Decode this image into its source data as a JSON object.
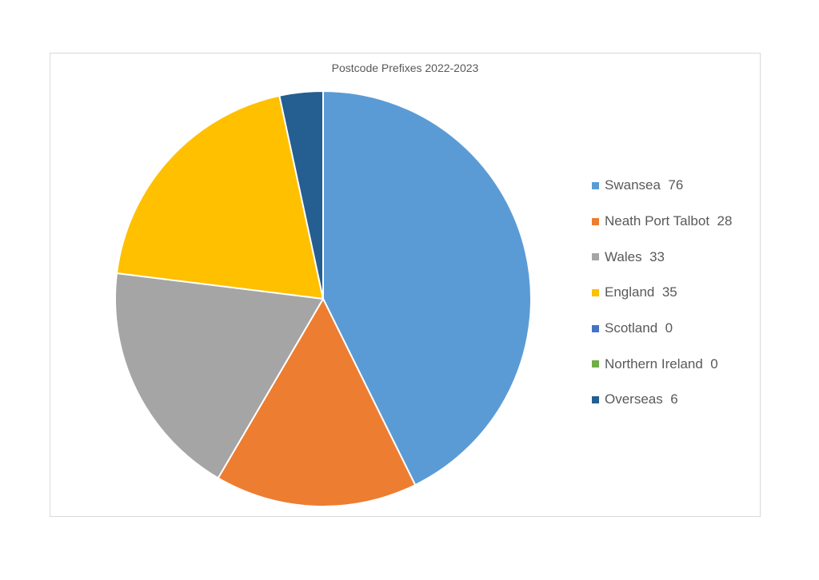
{
  "chart_data": {
    "type": "pie",
    "title": "Postcode Prefixes 2022-2023",
    "legend_position": "right",
    "slices": [
      {
        "label": "Swansea",
        "value": 76,
        "color": "#5B9BD5"
      },
      {
        "label": "Neath Port Talbot",
        "value": 28,
        "color": "#ED7D31"
      },
      {
        "label": "Wales",
        "value": 33,
        "color": "#A5A5A5"
      },
      {
        "label": "England",
        "value": 35,
        "color": "#FFC000"
      },
      {
        "label": "Scotland",
        "value": 0,
        "color": "#4472C4"
      },
      {
        "label": "Northern Ireland",
        "value": 0,
        "color": "#70AD47"
      },
      {
        "label": "Overseas",
        "value": 6,
        "color": "#255E91"
      }
    ]
  }
}
